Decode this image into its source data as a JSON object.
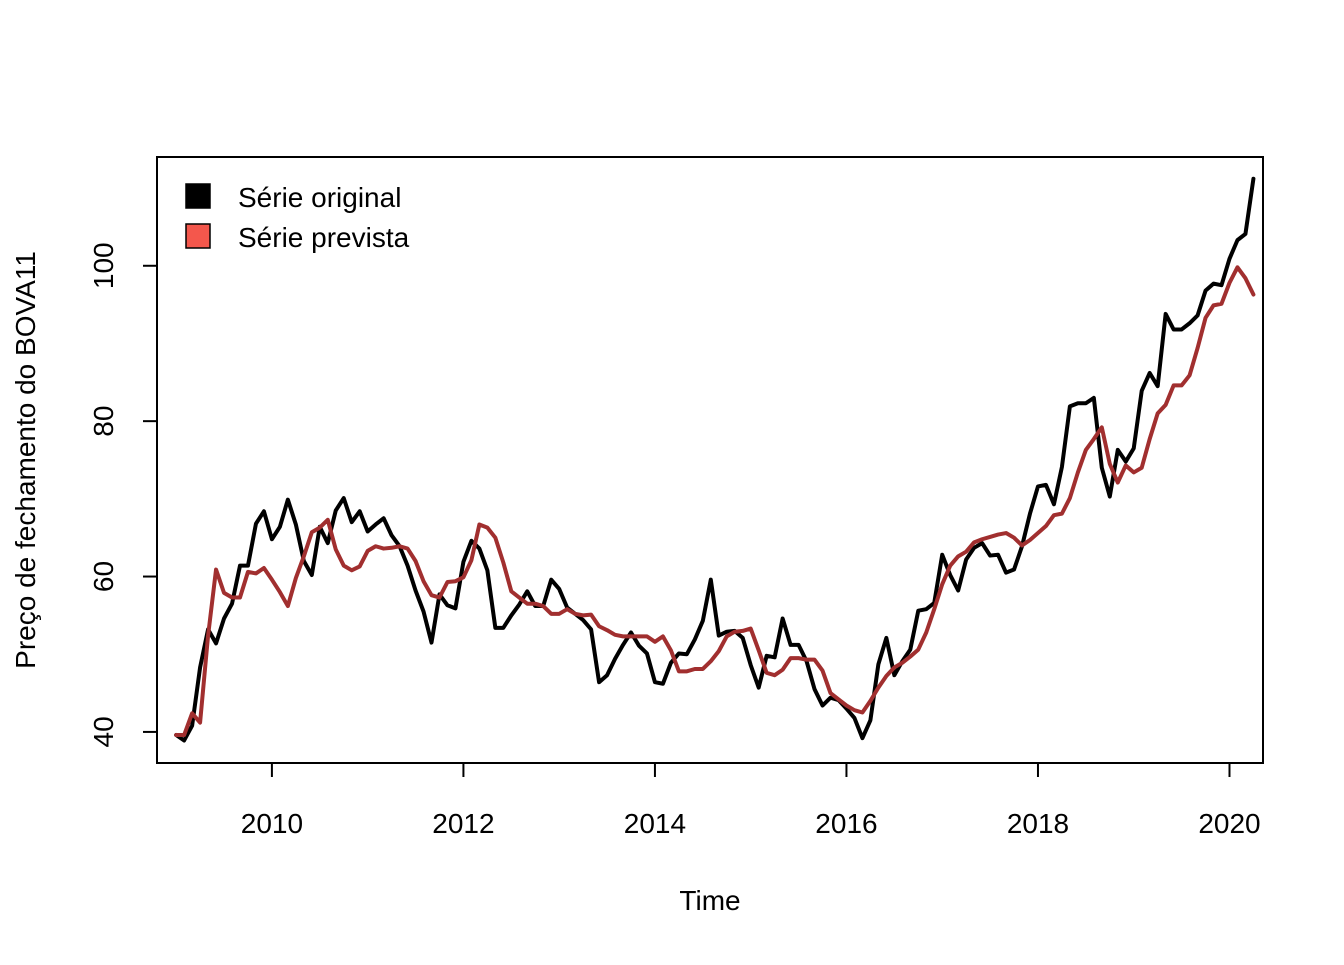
{
  "chart_data": {
    "type": "line",
    "title": "",
    "xlabel": "Time",
    "ylabel": "Preço de fechamento do BOVA11",
    "xlim": [
      2008.8,
      2020.35
    ],
    "ylim": [
      36,
      114
    ],
    "x_ticks": [
      2010,
      2012,
      2014,
      2016,
      2018,
      2020
    ],
    "y_ticks": [
      40,
      60,
      80,
      100
    ],
    "grid": false,
    "legend": {
      "position": "top-left"
    },
    "x_start": 2009.0,
    "x_step": 0.0833333,
    "series": [
      {
        "name": "Série original",
        "color": "#000000",
        "legend_color": "#000000",
        "values": [
          39.6,
          38.9,
          40.8,
          48.3,
          53.2,
          51.4,
          54.6,
          56.5,
          61.4,
          61.4,
          66.8,
          68.4,
          64.8,
          66.4,
          69.9,
          66.7,
          62.0,
          60.2,
          66.4,
          64.3,
          68.5,
          70.1,
          67.0,
          68.4,
          65.8,
          66.7,
          67.5,
          65.3,
          63.9,
          61.4,
          58.2,
          55.5,
          51.5,
          57.7,
          56.3,
          55.9,
          61.9,
          64.6,
          63.6,
          60.8,
          53.4,
          53.4,
          55.0,
          56.4,
          58.1,
          56.2,
          56.2,
          59.6,
          58.4,
          56.0,
          55.2,
          54.4,
          53.2,
          46.4,
          47.3,
          49.4,
          51.2,
          52.8,
          51.1,
          50.1,
          46.4,
          46.2,
          48.9,
          50.1,
          50.0,
          51.9,
          54.3,
          59.6,
          52.4,
          52.9,
          53.0,
          52.1,
          48.6,
          45.7,
          49.8,
          49.6,
          54.6,
          51.2,
          51.2,
          49.1,
          45.5,
          43.4,
          44.4,
          44.1,
          43.0,
          41.8,
          39.2,
          41.5,
          48.7,
          52.1,
          47.3,
          49.1,
          50.6,
          55.6,
          55.8,
          56.6,
          62.8,
          60.2,
          58.2,
          62.2,
          63.7,
          64.3,
          62.7,
          62.8,
          60.5,
          60.9,
          63.9,
          68.1,
          71.6,
          71.8,
          69.3,
          74.1,
          81.9,
          82.3,
          82.3,
          83.0,
          74.0,
          70.3,
          76.3,
          74.8,
          76.5,
          83.9,
          86.2,
          84.5,
          93.8,
          91.8,
          91.8,
          92.6,
          93.6,
          96.8,
          97.7,
          97.5,
          100.9,
          103.3,
          104.1,
          111.2
        ]
      },
      {
        "name": "Série prevista",
        "color": "#a12f2f",
        "legend_color": "#f4574c",
        "values": [
          39.6,
          39.6,
          42.4,
          41.2,
          52.4,
          60.9,
          57.9,
          57.3,
          57.3,
          60.6,
          60.4,
          61.1,
          59.6,
          58.0,
          56.2,
          59.8,
          62.6,
          65.7,
          66.3,
          67.3,
          63.5,
          61.4,
          60.8,
          61.3,
          63.3,
          63.9,
          63.6,
          63.7,
          63.9,
          63.6,
          62.0,
          59.4,
          57.6,
          57.3,
          59.3,
          59.4,
          59.9,
          62.1,
          66.7,
          66.3,
          65.0,
          61.8,
          58.1,
          57.3,
          56.5,
          56.5,
          56.2,
          55.2,
          55.2,
          55.8,
          55.2,
          55.0,
          55.1,
          53.6,
          53.1,
          52.5,
          52.3,
          52.3,
          52.3,
          52.3,
          51.6,
          52.3,
          50.5,
          47.8,
          47.8,
          48.1,
          48.1,
          49.1,
          50.4,
          52.3,
          52.9,
          53.0,
          53.3,
          50.5,
          47.6,
          47.3,
          48.0,
          49.5,
          49.5,
          49.3,
          49.3,
          47.9,
          45.0,
          44.2,
          43.4,
          42.8,
          42.5,
          44.0,
          45.7,
          47.2,
          48.3,
          48.9,
          49.7,
          50.6,
          52.8,
          55.8,
          59.0,
          61.4,
          62.6,
          63.2,
          64.4,
          64.8,
          65.1,
          65.4,
          65.6,
          65.0,
          64.0,
          64.7,
          65.6,
          66.5,
          67.9,
          68.1,
          70.1,
          73.4,
          76.3,
          77.7,
          79.2,
          74.5,
          72.1,
          74.3,
          73.4,
          74.0,
          77.7,
          81.0,
          82.1,
          84.6,
          84.6,
          85.9,
          89.4,
          93.3,
          94.9,
          95.1,
          97.8,
          99.8,
          98.4,
          96.3
        ]
      }
    ],
    "legend_entries": [
      {
        "label": "Série original"
      },
      {
        "label": "Série prevista"
      }
    ]
  }
}
